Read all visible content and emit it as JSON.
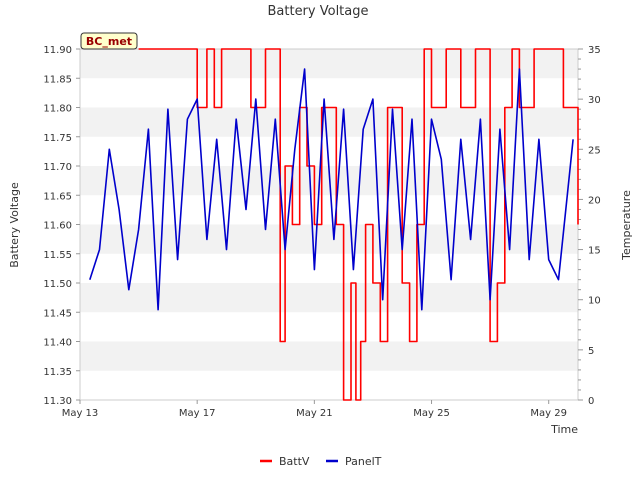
{
  "chart_data": {
    "type": "line",
    "title": "Battery Voltage",
    "xlabel": "Time",
    "ylabel": "Battery Voltage",
    "y2label": "Temperature",
    "badge": "BC_met",
    "xlim": [
      "2024-05-13",
      "2024-05-30"
    ],
    "xtick_labels": [
      "May 13",
      "May 17",
      "May 21",
      "May 25",
      "May 29"
    ],
    "ylim": [
      11.3,
      11.9
    ],
    "yticks": [
      11.3,
      11.35,
      11.4,
      11.45,
      11.5,
      11.55,
      11.6,
      11.65,
      11.7,
      11.75,
      11.8,
      11.85,
      11.9
    ],
    "y2lim": [
      0,
      35
    ],
    "y2ticks": [
      0,
      5,
      10,
      15,
      20,
      25,
      30,
      35
    ],
    "grid": "horizontal bands",
    "legend": "bottom-center",
    "series": [
      {
        "name": "BattV",
        "axis": "left",
        "color": "#ff0000",
        "x": [
          "2024-05-15",
          "2024-05-16",
          "2024-05-16 18:00",
          "2024-05-17",
          "2024-05-17 08:00",
          "2024-05-17 14:00",
          "2024-05-17 20:00",
          "2024-05-18 04:00",
          "2024-05-18 10:00",
          "2024-05-18 20:00",
          "2024-05-19 08:00",
          "2024-05-19 20:00",
          "2024-05-20",
          "2024-05-20 06:00",
          "2024-05-20 12:00",
          "2024-05-20 18:00",
          "2024-05-21",
          "2024-05-21 06:00",
          "2024-05-21 12:00",
          "2024-05-21 18:00",
          "2024-05-22",
          "2024-05-22 06:00",
          "2024-05-22 10:00",
          "2024-05-22 14:00",
          "2024-05-22 18:00",
          "2024-05-23",
          "2024-05-23 06:00",
          "2024-05-23 12:00",
          "2024-05-23 18:00",
          "2024-05-24",
          "2024-05-24 06:00",
          "2024-05-24 12:00",
          "2024-05-24 18:00",
          "2024-05-25",
          "2024-05-25 06:00",
          "2024-05-25 12:00",
          "2024-05-26",
          "2024-05-26 12:00",
          "2024-05-27",
          "2024-05-27 06:00",
          "2024-05-27 12:00",
          "2024-05-27 18:00",
          "2024-05-28",
          "2024-05-28 12:00",
          "2024-05-29",
          "2024-05-29 12:00",
          "2024-05-29 18:00",
          "2024-05-30"
        ],
        "y": [
          11.9,
          11.9,
          11.9,
          11.8,
          11.9,
          11.8,
          11.9,
          11.9,
          11.9,
          11.8,
          11.9,
          11.4,
          11.7,
          11.6,
          11.8,
          11.7,
          11.6,
          11.8,
          11.8,
          11.6,
          11.3,
          11.5,
          11.3,
          11.4,
          11.6,
          11.5,
          11.4,
          11.8,
          11.8,
          11.5,
          11.4,
          11.6,
          11.9,
          11.8,
          11.8,
          11.9,
          11.8,
          11.9,
          11.4,
          11.5,
          11.8,
          11.9,
          11.8,
          11.9,
          11.9,
          11.8,
          11.8,
          11.6
        ]
      },
      {
        "name": "PanelT",
        "axis": "right",
        "color": "#0000cc",
        "x": [
          "2024-05-13 08:00",
          "2024-05-13 16:00",
          "2024-05-14",
          "2024-05-14 08:00",
          "2024-05-14 16:00",
          "2024-05-15",
          "2024-05-15 08:00",
          "2024-05-15 16:00",
          "2024-05-16",
          "2024-05-16 08:00",
          "2024-05-16 16:00",
          "2024-05-17",
          "2024-05-17 08:00",
          "2024-05-17 16:00",
          "2024-05-18",
          "2024-05-18 08:00",
          "2024-05-18 16:00",
          "2024-05-19",
          "2024-05-19 08:00",
          "2024-05-19 16:00",
          "2024-05-20",
          "2024-05-20 08:00",
          "2024-05-20 16:00",
          "2024-05-21",
          "2024-05-21 08:00",
          "2024-05-21 16:00",
          "2024-05-22",
          "2024-05-22 08:00",
          "2024-05-22 16:00",
          "2024-05-23",
          "2024-05-23 08:00",
          "2024-05-23 16:00",
          "2024-05-24",
          "2024-05-24 08:00",
          "2024-05-24 16:00",
          "2024-05-25",
          "2024-05-25 08:00",
          "2024-05-25 16:00",
          "2024-05-26",
          "2024-05-26 08:00",
          "2024-05-26 16:00",
          "2024-05-27",
          "2024-05-27 08:00",
          "2024-05-27 16:00",
          "2024-05-28",
          "2024-05-28 08:00",
          "2024-05-28 16:00",
          "2024-05-29",
          "2024-05-29 08:00",
          "2024-05-29 20:00"
        ],
        "y": [
          12,
          15,
          25,
          19,
          11,
          17,
          27,
          9,
          29,
          14,
          28,
          30,
          16,
          26,
          15,
          28,
          19,
          30,
          17,
          28,
          15,
          25,
          33,
          13,
          30,
          16,
          29,
          13,
          27,
          30,
          10,
          29,
          15,
          28,
          9,
          28,
          24,
          12,
          26,
          16,
          28,
          10,
          27,
          15,
          33,
          14,
          26,
          14,
          12,
          26
        ]
      }
    ]
  }
}
